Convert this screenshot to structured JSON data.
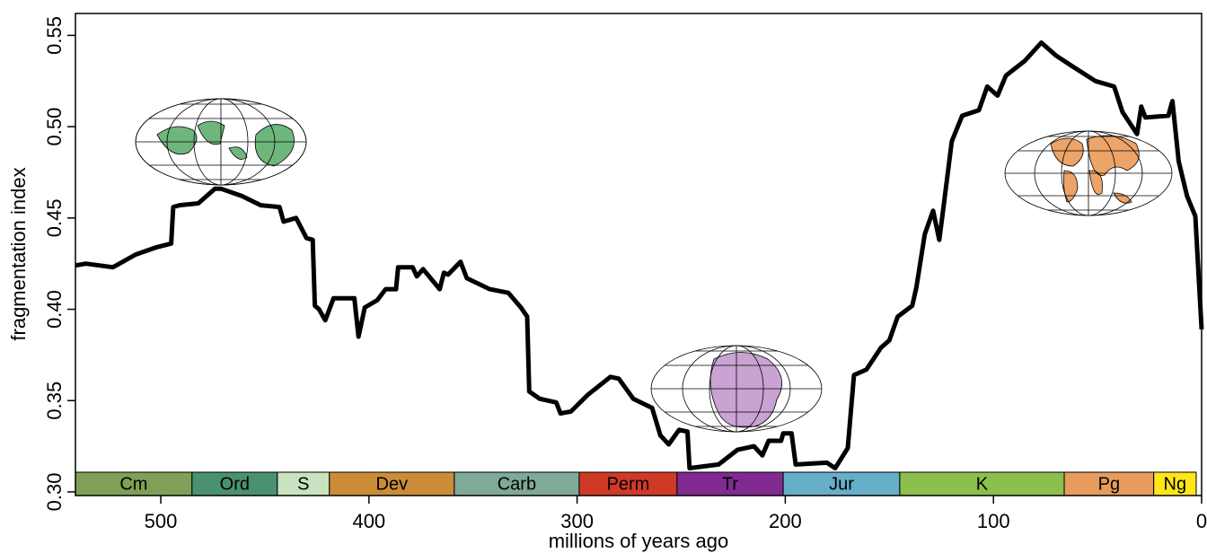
{
  "chart_data": {
    "type": "line",
    "xlabel": "millions of years ago",
    "ylabel": "fragmentation index",
    "xlim": [
      541,
      0
    ],
    "ylim": [
      0.298,
      0.562
    ],
    "xticks": [
      500,
      400,
      300,
      200,
      100,
      0
    ],
    "yticks": [
      {
        "value": 0.3,
        "label": "0.30"
      },
      {
        "value": 0.35,
        "label": "0.35"
      },
      {
        "value": 0.4,
        "label": "0.40"
      },
      {
        "value": 0.45,
        "label": "0.45"
      },
      {
        "value": 0.5,
        "label": "0.50"
      },
      {
        "value": 0.55,
        "label": "0.55"
      }
    ],
    "color": "#000000",
    "x": [
      541,
      536,
      523,
      512,
      502,
      495,
      494,
      491,
      482,
      474,
      471,
      461,
      452,
      443,
      441,
      435,
      430,
      427,
      426,
      424,
      421,
      417,
      407,
      405,
      402,
      396,
      392,
      387,
      386,
      379,
      377,
      374,
      366,
      364,
      362,
      356,
      353,
      342,
      333,
      327,
      324,
      323,
      318,
      310,
      308,
      303,
      295,
      284,
      280,
      273,
      264,
      260,
      256,
      251,
      247,
      246,
      232,
      223,
      215,
      211,
      208,
      202,
      201,
      197,
      195,
      180,
      176,
      170,
      167,
      161,
      154,
      150,
      146,
      139,
      137,
      133,
      129,
      126,
      124,
      120,
      115,
      107,
      103,
      98,
      94,
      85,
      77,
      70,
      62,
      51,
      42,
      38,
      31,
      29,
      27,
      16,
      14,
      11,
      7,
      3,
      0
    ],
    "values": [
      0.424,
      0.425,
      0.423,
      0.43,
      0.434,
      0.436,
      0.456,
      0.457,
      0.458,
      0.466,
      0.466,
      0.462,
      0.457,
      0.456,
      0.448,
      0.45,
      0.439,
      0.438,
      0.402,
      0.4,
      0.394,
      0.406,
      0.406,
      0.385,
      0.401,
      0.405,
      0.411,
      0.411,
      0.423,
      0.423,
      0.418,
      0.422,
      0.411,
      0.42,
      0.419,
      0.426,
      0.417,
      0.411,
      0.409,
      0.401,
      0.396,
      0.355,
      0.351,
      0.349,
      0.343,
      0.344,
      0.353,
      0.363,
      0.362,
      0.351,
      0.346,
      0.331,
      0.326,
      0.334,
      0.333,
      0.313,
      0.315,
      0.323,
      0.325,
      0.32,
      0.328,
      0.328,
      0.332,
      0.332,
      0.315,
      0.316,
      0.313,
      0.324,
      0.364,
      0.367,
      0.379,
      0.383,
      0.396,
      0.402,
      0.412,
      0.441,
      0.454,
      0.438,
      0.456,
      0.492,
      0.506,
      0.509,
      0.522,
      0.517,
      0.528,
      0.536,
      0.546,
      0.539,
      0.533,
      0.525,
      0.522,
      0.508,
      0.496,
      0.511,
      0.505,
      0.506,
      0.514,
      0.481,
      0.462,
      0.451,
      0.389
    ],
    "periods": [
      {
        "name": "Cm",
        "start": 541,
        "end": 485,
        "color": "#7fa056"
      },
      {
        "name": "Ord",
        "start": 485,
        "end": 444,
        "color": "#4a9170"
      },
      {
        "name": "S",
        "start": 444,
        "end": 419,
        "color": "#c8e3bd"
      },
      {
        "name": "Dev",
        "start": 419,
        "end": 359,
        "color": "#cb8c37"
      },
      {
        "name": "Carb",
        "start": 359,
        "end": 299,
        "color": "#7faa98"
      },
      {
        "name": "Perm",
        "start": 299,
        "end": 252,
        "color": "#cf3a26"
      },
      {
        "name": "Tr",
        "start": 252,
        "end": 201,
        "color": "#812b92"
      },
      {
        "name": "Jur",
        "start": 201,
        "end": 145,
        "color": "#67aec9"
      },
      {
        "name": "K",
        "start": 145,
        "end": 66,
        "color": "#8cbf4d"
      },
      {
        "name": "Pg",
        "start": 66,
        "end": 23,
        "color": "#e79b5c"
      },
      {
        "name": "Ng",
        "start": 23,
        "end": 2.6,
        "color": "#ffe619"
      }
    ]
  }
}
